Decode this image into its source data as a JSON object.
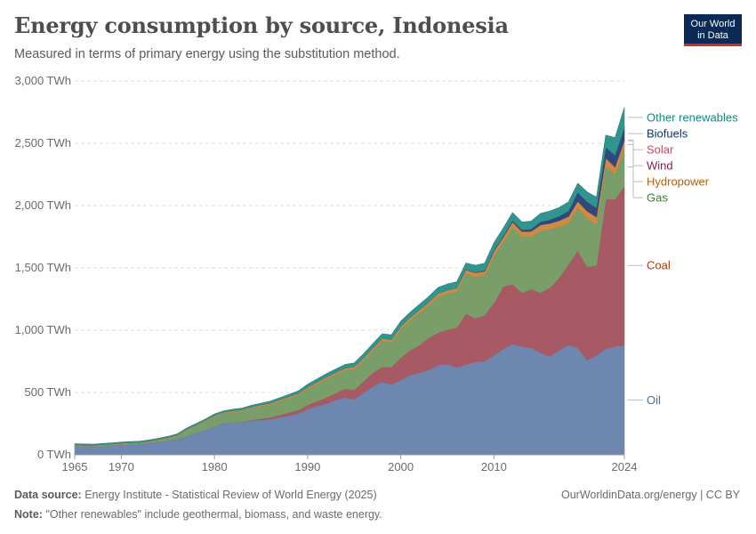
{
  "header": {
    "title": "Energy consumption by source, Indonesia",
    "subtitle": "Measured in terms of primary energy using the substitution method.",
    "logo_line1": "Our World",
    "logo_line2": "in Data"
  },
  "footer": {
    "source_label": "Data source:",
    "source_text": "Energy Institute - Statistical Review of World Energy (2025)",
    "credit": "OurWorldinData.org/energy | CC BY",
    "note_label": "Note:",
    "note_text": "\"Other renewables\" include geothermal, biomass, and waste energy."
  },
  "chart_data": {
    "type": "area",
    "stacked": true,
    "title": "Energy consumption by source, Indonesia",
    "ylabel": "TWh",
    "ylim": [
      0,
      3000
    ],
    "xlim": [
      1965,
      2024
    ],
    "y_ticks": [
      0,
      500,
      1000,
      1500,
      2000,
      2500,
      3000
    ],
    "y_tick_labels": [
      "0 TWh",
      "500 TWh",
      "1,000 TWh",
      "1,500 TWh",
      "2,000 TWh",
      "2,500 TWh",
      "3,000 TWh"
    ],
    "x_ticks": [
      1965,
      1970,
      1980,
      1990,
      2000,
      2010,
      2024
    ],
    "x_tick_labels": [
      "1965",
      "1970",
      "1980",
      "1990",
      "2000",
      "2010",
      "2024"
    ],
    "x": [
      1965,
      1966,
      1967,
      1968,
      1969,
      1970,
      1971,
      1972,
      1973,
      1974,
      1975,
      1976,
      1977,
      1978,
      1979,
      1980,
      1981,
      1982,
      1983,
      1984,
      1985,
      1986,
      1987,
      1988,
      1989,
      1990,
      1991,
      1992,
      1993,
      1994,
      1995,
      1996,
      1997,
      1998,
      1999,
      2000,
      2001,
      2002,
      2003,
      2004,
      2005,
      2006,
      2007,
      2008,
      2009,
      2010,
      2011,
      2012,
      2013,
      2014,
      2015,
      2016,
      2017,
      2018,
      2019,
      2020,
      2021,
      2022,
      2023,
      2024
    ],
    "series": [
      {
        "name": "Oil",
        "color": "#6d87b0",
        "label_color": "#4c6a9c",
        "values": [
          68,
          66,
          65,
          70,
          75,
          80,
          82,
          85,
          95,
          105,
          115,
          125,
          150,
          175,
          200,
          230,
          255,
          262,
          262,
          275,
          280,
          285,
          300,
          315,
          330,
          365,
          390,
          410,
          440,
          460,
          445,
          500,
          550,
          585,
          565,
          600,
          640,
          660,
          680,
          720,
          730,
          700,
          725,
          745,
          750,
          800,
          850,
          890,
          870,
          860,
          820,
          790,
          840,
          880,
          860,
          760,
          800,
          850,
          870,
          880
        ]
      },
      {
        "name": "Coal",
        "color": "#a75a64",
        "label_color": "#b13507",
        "values": [
          0,
          0,
          0,
          0,
          0,
          0,
          0,
          0,
          0,
          0,
          0,
          0,
          0,
          0,
          0,
          0,
          0,
          0,
          2,
          5,
          10,
          15,
          20,
          25,
          30,
          35,
          40,
          50,
          55,
          70,
          75,
          90,
          110,
          120,
          140,
          180,
          200,
          220,
          260,
          260,
          275,
          320,
          410,
          350,
          370,
          420,
          500,
          480,
          430,
          470,
          480,
          550,
          580,
          650,
          780,
          750,
          720,
          1200,
          1180,
          1280
        ]
      },
      {
        "name": "Gas",
        "color": "#7a9e6a",
        "label_color": "#3f7a35",
        "values": [
          10,
          10,
          10,
          10,
          10,
          10,
          12,
          12,
          12,
          15,
          20,
          30,
          50,
          60,
          70,
          80,
          80,
          85,
          90,
          95,
          100,
          105,
          110,
          115,
          120,
          130,
          140,
          150,
          150,
          150,
          170,
          170,
          180,
          210,
          200,
          230,
          240,
          260,
          260,
          290,
          290,
          290,
          320,
          335,
          320,
          380,
          360,
          460,
          450,
          420,
          500,
          470,
          410,
          330,
          340,
          390,
          330,
          270,
          200,
          300
        ]
      },
      {
        "name": "Hydropower",
        "color": "#d08a42",
        "label_color": "#b95e0c",
        "values": [
          3,
          3,
          3,
          3,
          3,
          4,
          4,
          4,
          4,
          5,
          5,
          5,
          6,
          6,
          7,
          7,
          8,
          8,
          9,
          10,
          10,
          11,
          12,
          12,
          13,
          14,
          14,
          15,
          16,
          16,
          17,
          18,
          18,
          20,
          20,
          22,
          22,
          23,
          24,
          25,
          26,
          28,
          30,
          32,
          33,
          35,
          37,
          40,
          42,
          44,
          46,
          48,
          50,
          52,
          54,
          56,
          58,
          60,
          58,
          60
        ]
      },
      {
        "name": "Wind",
        "color": "#8c1d55",
        "label_color": "#8c1d55",
        "values": [
          0,
          0,
          0,
          0,
          0,
          0,
          0,
          0,
          0,
          0,
          0,
          0,
          0,
          0,
          0,
          0,
          0,
          0,
          0,
          0,
          0,
          0,
          0,
          0,
          0,
          0,
          0,
          0,
          0,
          0,
          0,
          0,
          0,
          0,
          0,
          0,
          0,
          0,
          0,
          0,
          0,
          0,
          0,
          0,
          0,
          0,
          0,
          0,
          0,
          0,
          0,
          0,
          0,
          1,
          2,
          3,
          3,
          3,
          3,
          3
        ]
      },
      {
        "name": "Solar",
        "color": "#d4576b",
        "label_color": "#c84a5f",
        "values": [
          0,
          0,
          0,
          0,
          0,
          0,
          0,
          0,
          0,
          0,
          0,
          0,
          0,
          0,
          0,
          0,
          0,
          0,
          0,
          0,
          0,
          0,
          0,
          0,
          0,
          0,
          0,
          0,
          0,
          0,
          0,
          0,
          0,
          0,
          0,
          0,
          0,
          0,
          0,
          0,
          0,
          0,
          0,
          0,
          0,
          0,
          0,
          0,
          0,
          0,
          0,
          0,
          0,
          1,
          1,
          1,
          2,
          3,
          4,
          5
        ]
      },
      {
        "name": "Biofuels",
        "color": "#2d4a7c",
        "label_color": "#0b3570",
        "values": [
          0,
          0,
          0,
          0,
          0,
          0,
          0,
          0,
          0,
          0,
          0,
          0,
          0,
          0,
          0,
          0,
          0,
          0,
          0,
          0,
          0,
          0,
          0,
          0,
          0,
          0,
          0,
          0,
          0,
          0,
          0,
          0,
          0,
          0,
          0,
          0,
          0,
          0,
          0,
          0,
          0,
          0,
          2,
          4,
          6,
          8,
          10,
          12,
          14,
          18,
          25,
          30,
          35,
          45,
          70,
          70,
          70,
          85,
          90,
          100
        ]
      },
      {
        "name": "Other renewables",
        "color": "#31958f",
        "label_color": "#108a80",
        "values": [
          8,
          8,
          8,
          8,
          8,
          8,
          8,
          8,
          8,
          8,
          8,
          8,
          8,
          9,
          9,
          10,
          10,
          11,
          12,
          13,
          14,
          15,
          16,
          18,
          20,
          22,
          24,
          25,
          26,
          28,
          30,
          32,
          34,
          36,
          38,
          40,
          42,
          44,
          46,
          48,
          50,
          50,
          52,
          55,
          58,
          60,
          62,
          62,
          62,
          64,
          66,
          68,
          70,
          70,
          72,
          80,
          85,
          95,
          140,
          160
        ]
      }
    ]
  }
}
